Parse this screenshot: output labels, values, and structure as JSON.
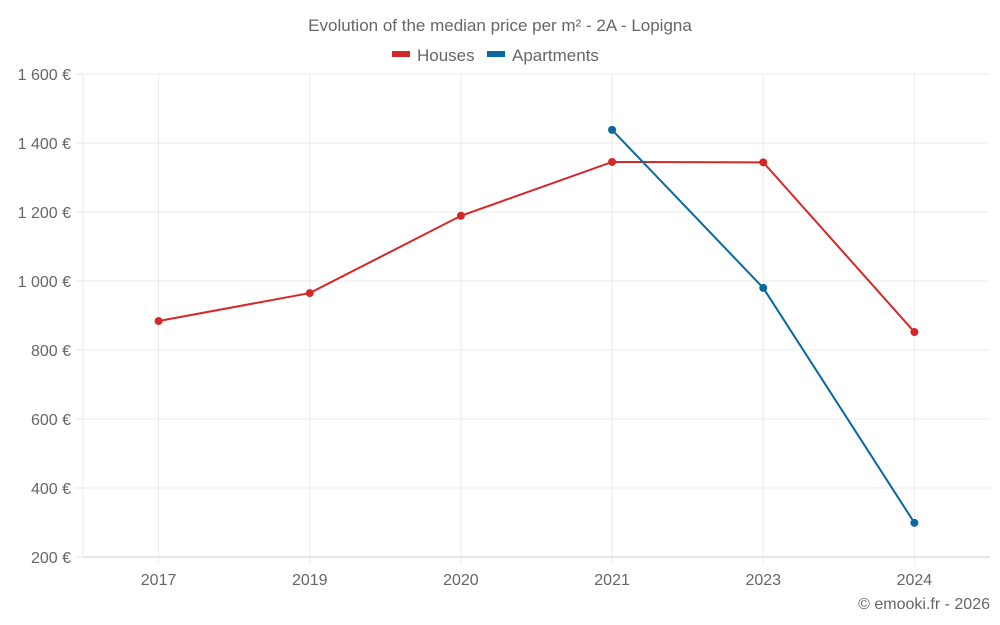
{
  "chart_data": {
    "type": "line",
    "title": "Evolution of the median price per m² - 2A - Lopigna",
    "xlabel": "",
    "ylabel": "",
    "categories": [
      "2017",
      "2019",
      "2020",
      "2021",
      "2023",
      "2024"
    ],
    "ylim": [
      200,
      1600
    ],
    "yticks": [
      200,
      400,
      600,
      800,
      1000,
      1200,
      1400,
      1600
    ],
    "ytick_labels": [
      "200 €",
      "400 €",
      "600 €",
      "800 €",
      "1 000 €",
      "1 200 €",
      "1 400 €",
      "1 600 €"
    ],
    "grid": true,
    "legend_position": "top-center",
    "series": [
      {
        "name": "Houses",
        "color": "#d62728",
        "values": [
          884,
          965,
          1189,
          1345,
          1344,
          852
        ]
      },
      {
        "name": "Apartments",
        "color": "#0868a0",
        "values": [
          null,
          null,
          null,
          1438,
          980,
          299
        ]
      }
    ],
    "credit": "© emooki.fr - 2026"
  }
}
